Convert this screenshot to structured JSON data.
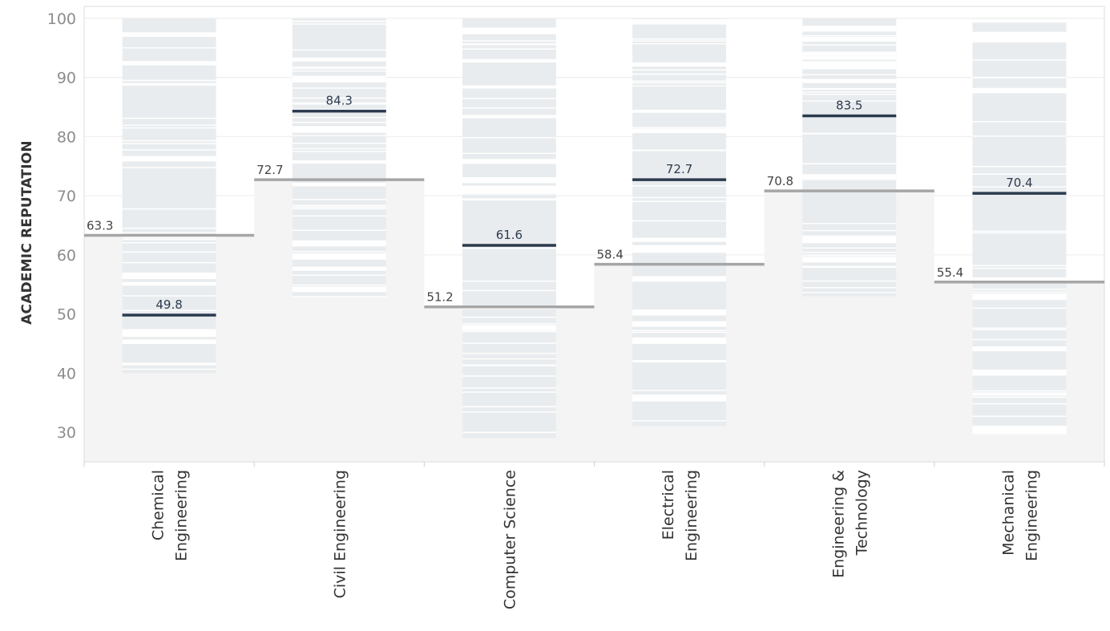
{
  "chart_data": {
    "type": "bar",
    "ylabel": "ACADEMIC REPUTATION",
    "ylim": [
      25,
      102
    ],
    "yticks": [
      30,
      40,
      50,
      60,
      70,
      80,
      90,
      100
    ],
    "grid": true,
    "categories": [
      {
        "label": [
          "Chemical",
          "Engineering"
        ],
        "benchmark": 63.3,
        "selected": 49.8,
        "range": [
          40,
          100
        ]
      },
      {
        "label": [
          "Civil Engineering"
        ],
        "benchmark": 72.7,
        "selected": 84.3,
        "range": [
          53,
          100
        ]
      },
      {
        "label": [
          "Computer Science"
        ],
        "benchmark": 51.2,
        "selected": 61.6,
        "range": [
          29,
          100
        ]
      },
      {
        "label": [
          "Electrical",
          "Engineering"
        ],
        "benchmark": 58.4,
        "selected": 72.7,
        "range": [
          31,
          100
        ]
      },
      {
        "label": [
          "Engineering &",
          "Technology"
        ],
        "benchmark": 70.8,
        "selected": 83.5,
        "range": [
          53,
          100
        ]
      },
      {
        "label": [
          "Mechanical",
          "Engineering"
        ],
        "benchmark": 55.4,
        "selected": 70.4,
        "range": [
          30,
          100
        ]
      }
    ],
    "colors": {
      "benchmark_line": "#a6a6a6",
      "selected_line": "#2b3a4e",
      "benchmark_area": "#f4f4f4",
      "distribution_fill": "#e9ecee",
      "axis_text": "#8c8c8c",
      "label_text": "#333333"
    }
  }
}
